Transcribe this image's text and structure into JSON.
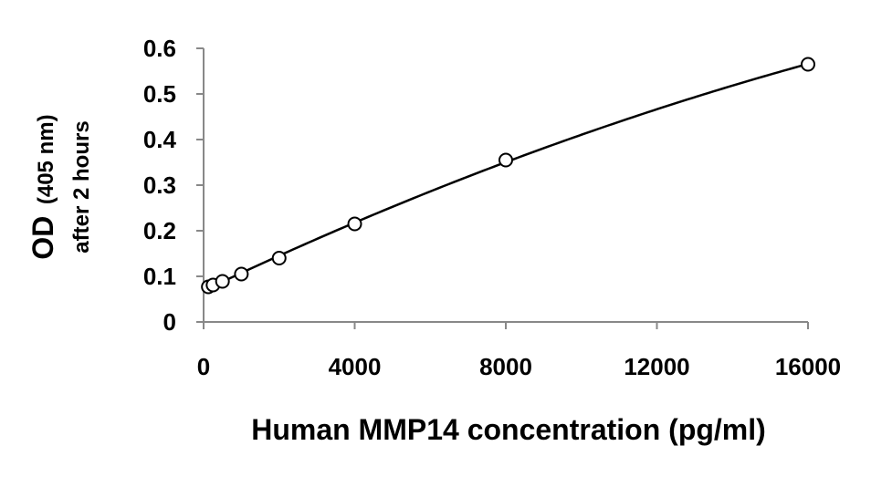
{
  "chart_data": {
    "type": "scatter",
    "title": "",
    "xlabel": "Human MMP14 concentration (pg/ml)",
    "ylabel_main": "OD",
    "ylabel_unit": "(405 nm)",
    "ylabel_sub": "after 2 hours",
    "xlim": [
      0,
      16000
    ],
    "ylim": [
      0,
      0.6
    ],
    "x_ticks": [
      0,
      4000,
      8000,
      12000,
      16000
    ],
    "x_tick_labels": [
      "0",
      "4000",
      "8000",
      "12000",
      "16000"
    ],
    "y_ticks": [
      0,
      0.1,
      0.2,
      0.3,
      0.4,
      0.5,
      0.6
    ],
    "y_tick_labels": [
      "0",
      "0.1",
      "0.2",
      "0.3",
      "0.4",
      "0.5",
      "0.6"
    ],
    "grid": false,
    "legend": "none",
    "series": [
      {
        "x": [
          125,
          250,
          500,
          1000,
          2000,
          4000,
          8000,
          16000
        ],
        "y": [
          0.077,
          0.081,
          0.089,
          0.105,
          0.14,
          0.215,
          0.355,
          0.565
        ],
        "marker": "open-circle",
        "fit_line": true
      }
    ],
    "colors": {
      "line": "#000000",
      "marker": "#000000"
    }
  }
}
